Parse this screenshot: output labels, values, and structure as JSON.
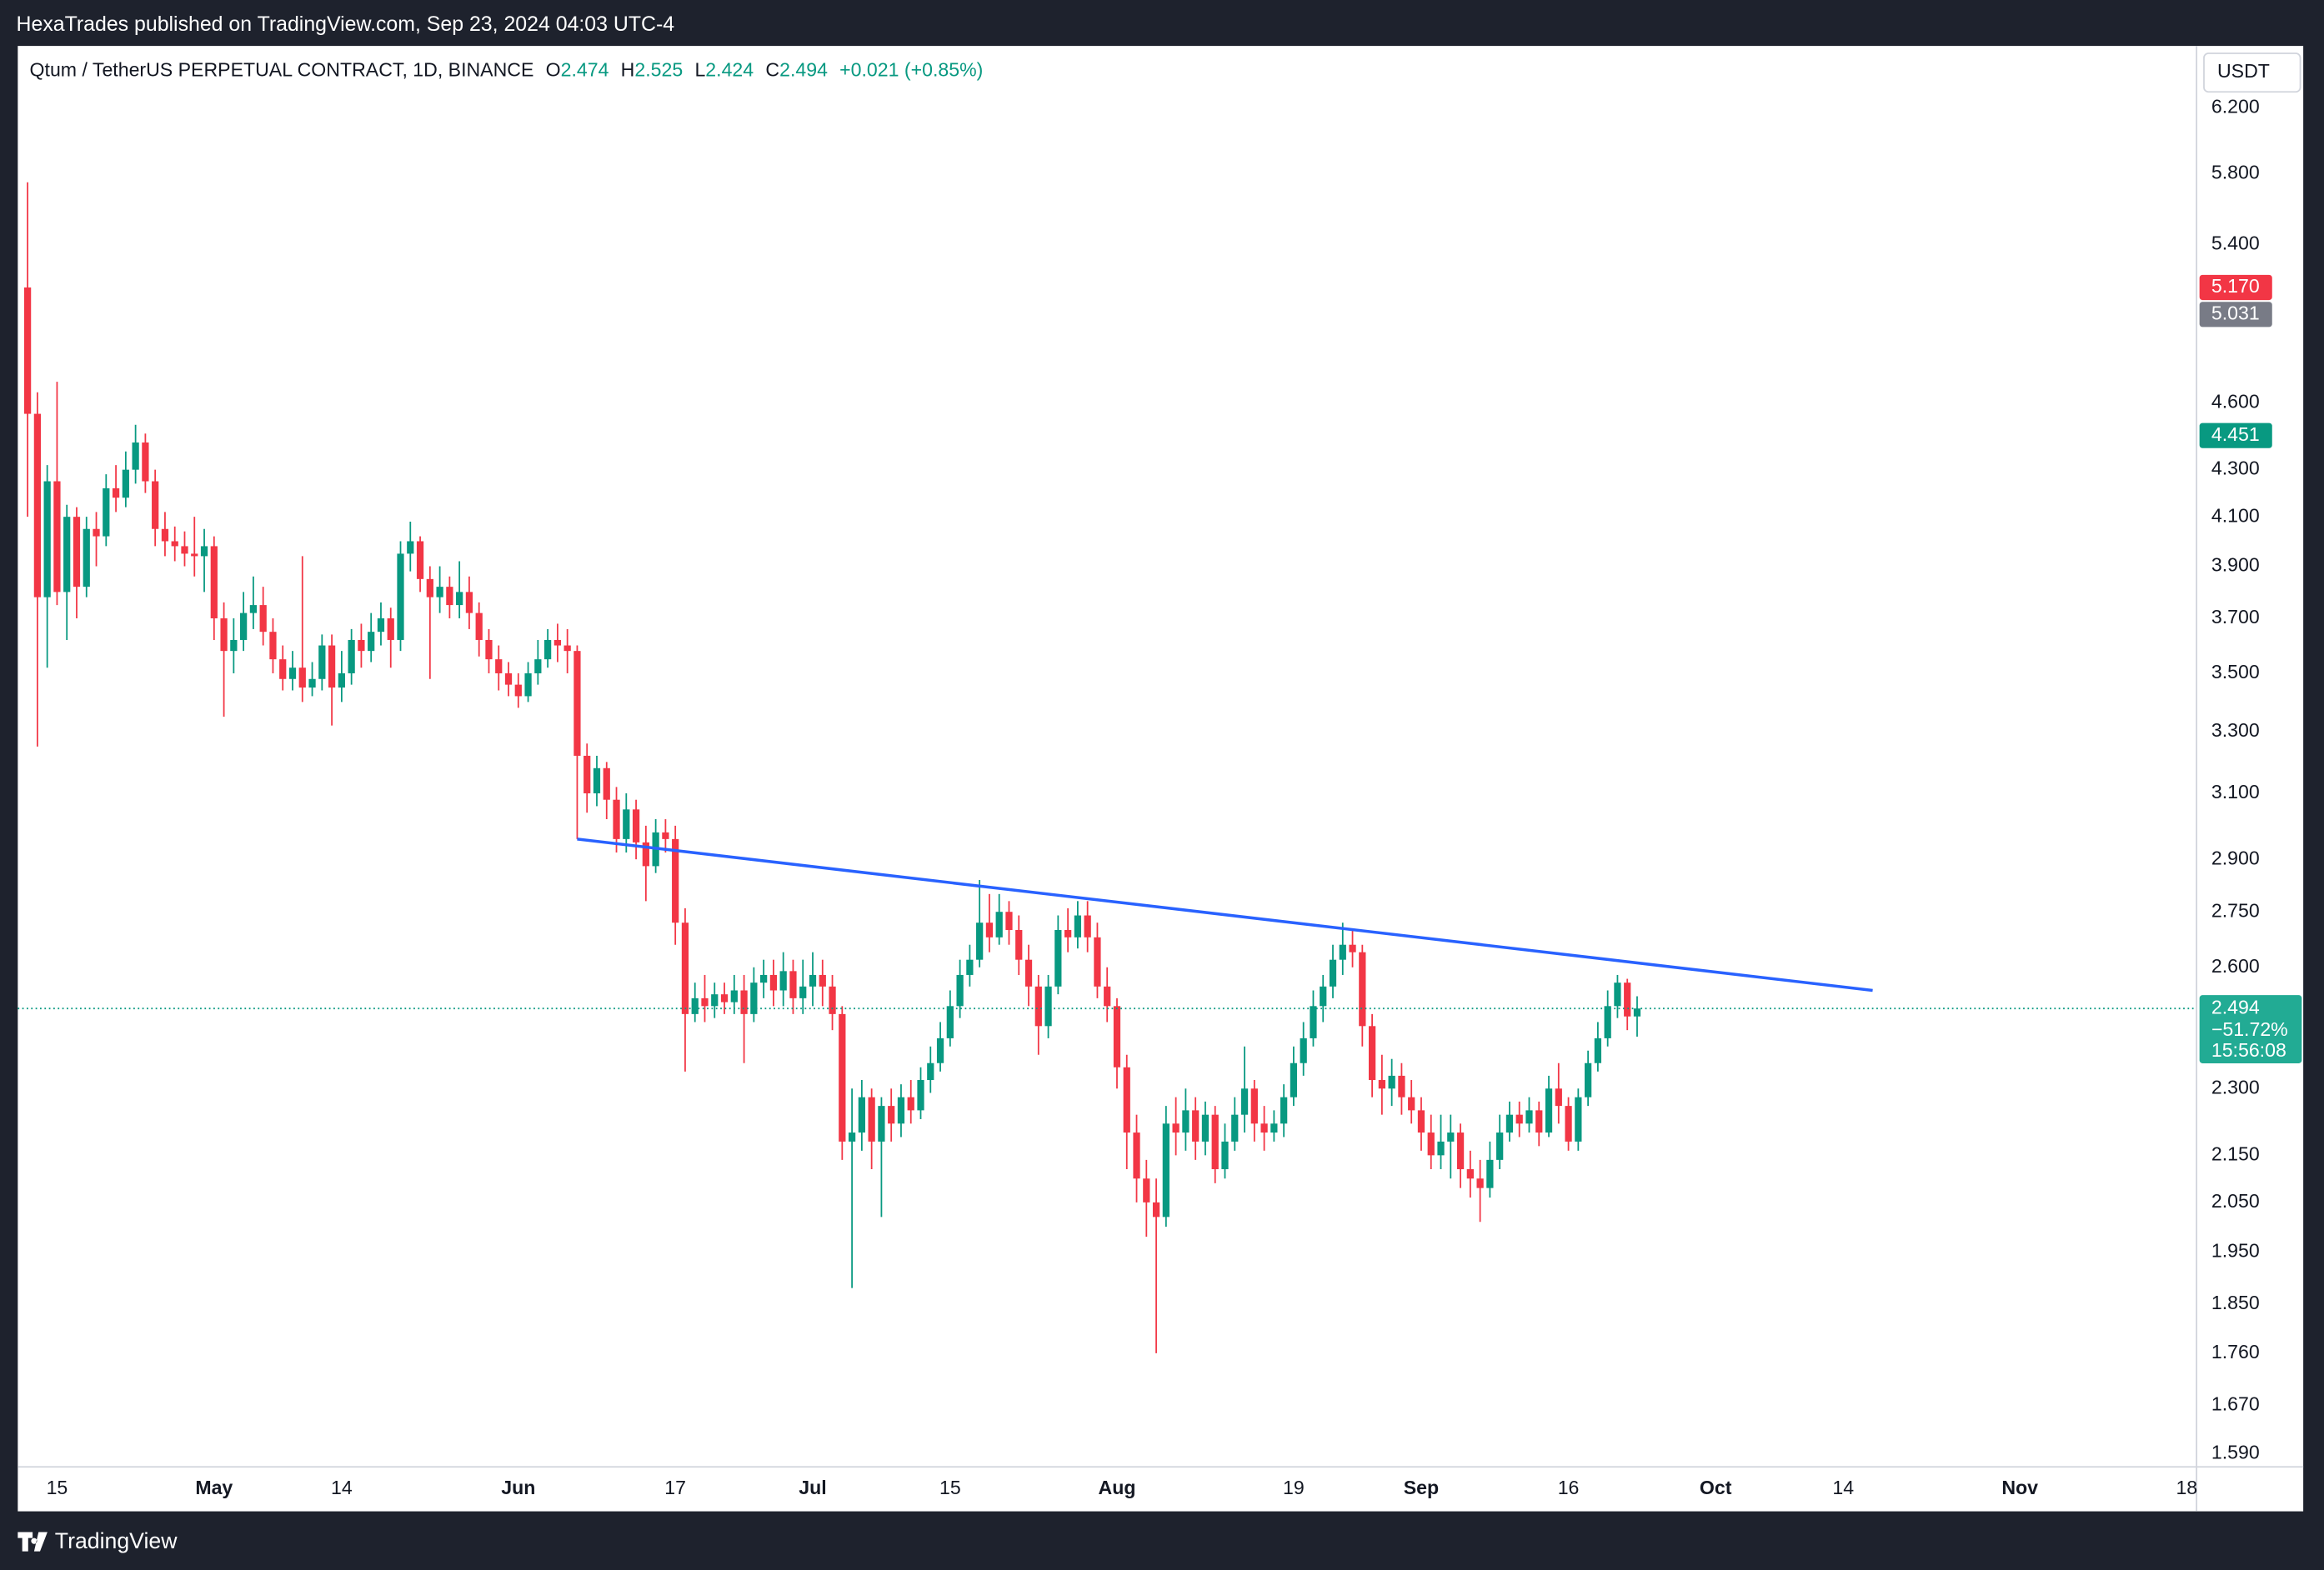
{
  "header": {
    "text": "HexaTrades published on TradingView.com, Sep 23, 2024 04:03 UTC-4"
  },
  "footer": {
    "brand": "TradingView"
  },
  "chart_data": {
    "type": "candlestick",
    "title": "Qtum / TetherUS PERPETUAL CONTRACT, 1D, BINANCE",
    "ohlc_letters": [
      "O",
      "H",
      "L",
      "C"
    ],
    "change_label": "+0.021 (+0.85%)",
    "currency": "USDT",
    "up_color": "#089981",
    "down_color": "#f23645",
    "log_scale": true,
    "grid": false,
    "ylim": [
      1.569,
      6.6
    ],
    "yticks": [
      {
        "value": 6.2,
        "label": "6.200"
      },
      {
        "value": 5.8,
        "label": "5.800"
      },
      {
        "value": 5.4,
        "label": "5.400"
      },
      {
        "value": 4.6,
        "label": "4.600"
      },
      {
        "value": 4.3,
        "label": "4.300"
      },
      {
        "value": 4.1,
        "label": "4.100"
      },
      {
        "value": 3.9,
        "label": "3.900"
      },
      {
        "value": 3.7,
        "label": "3.700"
      },
      {
        "value": 3.5,
        "label": "3.500"
      },
      {
        "value": 3.3,
        "label": "3.300"
      },
      {
        "value": 3.1,
        "label": "3.100"
      },
      {
        "value": 2.9,
        "label": "2.900"
      },
      {
        "value": 2.75,
        "label": "2.750"
      },
      {
        "value": 2.6,
        "label": "2.600"
      },
      {
        "value": 2.3,
        "label": "2.300"
      },
      {
        "value": 2.15,
        "label": "2.150"
      },
      {
        "value": 2.05,
        "label": "2.050"
      },
      {
        "value": 1.95,
        "label": "1.950"
      },
      {
        "value": 1.85,
        "label": "1.850"
      },
      {
        "value": 1.76,
        "label": "1.760"
      },
      {
        "value": 1.67,
        "label": "1.670"
      },
      {
        "value": 1.59,
        "label": "1.590"
      }
    ],
    "xlim": [
      "2024-04-11",
      "2024-11-19"
    ],
    "xticks": [
      {
        "value": "2024-04-15",
        "label": "15"
      },
      {
        "value": "2024-05-01",
        "label": "May"
      },
      {
        "value": "2024-05-14",
        "label": "14"
      },
      {
        "value": "2024-06-01",
        "label": "Jun"
      },
      {
        "value": "2024-06-17",
        "label": "17"
      },
      {
        "value": "2024-07-01",
        "label": "Jul"
      },
      {
        "value": "2024-07-15",
        "label": "15"
      },
      {
        "value": "2024-08-01",
        "label": "Aug"
      },
      {
        "value": "2024-08-19",
        "label": "19"
      },
      {
        "value": "2024-09-01",
        "label": "Sep"
      },
      {
        "value": "2024-09-16",
        "label": "16"
      },
      {
        "value": "2024-10-01",
        "label": "Oct"
      },
      {
        "value": "2024-10-14",
        "label": "14"
      },
      {
        "value": "2024-11-01",
        "label": "Nov"
      },
      {
        "value": "2024-11-18",
        "label": "18"
      }
    ],
    "x": [
      "2024-04-12",
      "2024-04-13",
      "2024-04-14",
      "2024-04-15",
      "2024-04-16",
      "2024-04-17",
      "2024-04-18",
      "2024-04-19",
      "2024-04-20",
      "2024-04-21",
      "2024-04-22",
      "2024-04-23",
      "2024-04-24",
      "2024-04-25",
      "2024-04-26",
      "2024-04-27",
      "2024-04-28",
      "2024-04-29",
      "2024-04-30",
      "2024-05-01",
      "2024-05-02",
      "2024-05-03",
      "2024-05-04",
      "2024-05-05",
      "2024-05-06",
      "2024-05-07",
      "2024-05-08",
      "2024-05-09",
      "2024-05-10",
      "2024-05-11",
      "2024-05-12",
      "2024-05-13",
      "2024-05-14",
      "2024-05-15",
      "2024-05-16",
      "2024-05-17",
      "2024-05-18",
      "2024-05-19",
      "2024-05-20",
      "2024-05-21",
      "2024-05-22",
      "2024-05-23",
      "2024-05-24",
      "2024-05-25",
      "2024-05-26",
      "2024-05-27",
      "2024-05-28",
      "2024-05-29",
      "2024-05-30",
      "2024-05-31",
      "2024-06-01",
      "2024-06-02",
      "2024-06-03",
      "2024-06-04",
      "2024-06-05",
      "2024-06-06",
      "2024-06-07",
      "2024-06-08",
      "2024-06-09",
      "2024-06-10",
      "2024-06-11",
      "2024-06-12",
      "2024-06-13",
      "2024-06-14",
      "2024-06-15",
      "2024-06-16",
      "2024-06-17",
      "2024-06-18",
      "2024-06-19",
      "2024-06-20",
      "2024-06-21",
      "2024-06-22",
      "2024-06-23",
      "2024-06-24",
      "2024-06-25",
      "2024-06-26",
      "2024-06-27",
      "2024-06-28",
      "2024-06-29",
      "2024-06-30",
      "2024-07-01",
      "2024-07-02",
      "2024-07-03",
      "2024-07-04",
      "2024-07-05",
      "2024-07-06",
      "2024-07-07",
      "2024-07-08",
      "2024-07-09",
      "2024-07-10",
      "2024-07-11",
      "2024-07-12",
      "2024-07-13",
      "2024-07-14",
      "2024-07-15",
      "2024-07-16",
      "2024-07-17",
      "2024-07-18",
      "2024-07-19",
      "2024-07-20",
      "2024-07-21",
      "2024-07-22",
      "2024-07-23",
      "2024-07-24",
      "2024-07-25",
      "2024-07-26",
      "2024-07-27",
      "2024-07-28",
      "2024-07-29",
      "2024-07-30",
      "2024-07-31",
      "2024-08-01",
      "2024-08-02",
      "2024-08-03",
      "2024-08-04",
      "2024-08-05",
      "2024-08-06",
      "2024-08-07",
      "2024-08-08",
      "2024-08-09",
      "2024-08-10",
      "2024-08-11",
      "2024-08-12",
      "2024-08-13",
      "2024-08-14",
      "2024-08-15",
      "2024-08-16",
      "2024-08-17",
      "2024-08-18",
      "2024-08-19",
      "2024-08-20",
      "2024-08-21",
      "2024-08-22",
      "2024-08-23",
      "2024-08-24",
      "2024-08-25",
      "2024-08-26",
      "2024-08-27",
      "2024-08-28",
      "2024-08-29",
      "2024-08-30",
      "2024-08-31",
      "2024-09-01",
      "2024-09-02",
      "2024-09-03",
      "2024-09-04",
      "2024-09-05",
      "2024-09-06",
      "2024-09-07",
      "2024-09-08",
      "2024-09-09",
      "2024-09-10",
      "2024-09-11",
      "2024-09-12",
      "2024-09-13",
      "2024-09-14",
      "2024-09-15",
      "2024-09-16",
      "2024-09-17",
      "2024-09-18",
      "2024-09-19",
      "2024-09-20",
      "2024-09-21",
      "2024-09-22",
      "2024-09-23"
    ],
    "open": [
      5.17,
      4.55,
      3.78,
      4.25,
      3.8,
      4.1,
      3.82,
      4.05,
      4.02,
      4.22,
      4.18,
      4.3,
      4.42,
      4.25,
      4.05,
      4.0,
      3.98,
      3.95,
      3.94,
      3.98,
      3.7,
      3.58,
      3.62,
      3.72,
      3.75,
      3.65,
      3.55,
      3.48,
      3.52,
      3.45,
      3.48,
      3.6,
      3.45,
      3.5,
      3.62,
      3.58,
      3.65,
      3.7,
      3.62,
      3.95,
      4.0,
      3.85,
      3.78,
      3.82,
      3.75,
      3.8,
      3.72,
      3.62,
      3.55,
      3.5,
      3.46,
      3.42,
      3.5,
      3.55,
      3.62,
      3.6,
      3.58,
      3.22,
      3.1,
      3.18,
      3.08,
      2.96,
      3.05,
      2.95,
      2.88,
      2.98,
      2.96,
      2.72,
      2.48,
      2.52,
      2.5,
      2.53,
      2.51,
      2.54,
      2.48,
      2.56,
      2.58,
      2.54,
      2.59,
      2.52,
      2.55,
      2.58,
      2.55,
      2.48,
      2.18,
      2.2,
      2.28,
      2.18,
      2.26,
      2.22,
      2.28,
      2.25,
      2.32,
      2.36,
      2.42,
      2.5,
      2.58,
      2.62,
      2.72,
      2.68,
      2.75,
      2.7,
      2.62,
      2.55,
      2.45,
      2.55,
      2.7,
      2.68,
      2.74,
      2.68,
      2.55,
      2.5,
      2.35,
      2.2,
      2.1,
      2.05,
      2.02,
      2.22,
      2.2,
      2.25,
      2.18,
      2.24,
      2.12,
      2.18,
      2.24,
      2.3,
      2.22,
      2.2,
      2.22,
      2.28,
      2.36,
      2.42,
      2.5,
      2.55,
      2.62,
      2.66,
      2.64,
      2.45,
      2.32,
      2.3,
      2.33,
      2.28,
      2.25,
      2.2,
      2.15,
      2.18,
      2.2,
      2.12,
      2.1,
      2.08,
      2.14,
      2.2,
      2.24,
      2.22,
      2.25,
      2.2,
      2.3,
      2.26,
      2.18,
      2.28,
      2.36,
      2.42,
      2.5,
      2.56,
      2.474
    ],
    "high": [
      5.75,
      4.65,
      4.32,
      4.7,
      4.15,
      4.14,
      4.1,
      4.12,
      4.28,
      4.32,
      4.38,
      4.5,
      4.46,
      4.3,
      4.12,
      4.06,
      4.04,
      4.1,
      4.05,
      4.02,
      3.76,
      3.7,
      3.8,
      3.86,
      3.82,
      3.7,
      3.6,
      3.58,
      3.94,
      3.54,
      3.64,
      3.64,
      3.58,
      3.66,
      3.68,
      3.72,
      3.76,
      3.74,
      4.0,
      4.08,
      4.02,
      3.9,
      3.9,
      3.86,
      3.92,
      3.86,
      3.76,
      3.66,
      3.6,
      3.54,
      3.5,
      3.54,
      3.62,
      3.66,
      3.68,
      3.66,
      3.6,
      3.26,
      3.22,
      3.2,
      3.12,
      3.1,
      3.08,
      3.0,
      3.02,
      3.02,
      3.0,
      2.76,
      2.56,
      2.58,
      2.56,
      2.56,
      2.58,
      2.58,
      2.6,
      2.62,
      2.62,
      2.64,
      2.62,
      2.62,
      2.64,
      2.62,
      2.58,
      2.5,
      2.3,
      2.32,
      2.3,
      2.28,
      2.3,
      2.31,
      2.32,
      2.35,
      2.4,
      2.46,
      2.54,
      2.62,
      2.66,
      2.84,
      2.8,
      2.8,
      2.78,
      2.74,
      2.66,
      2.58,
      2.58,
      2.74,
      2.76,
      2.78,
      2.78,
      2.72,
      2.6,
      2.52,
      2.38,
      2.24,
      2.14,
      2.1,
      2.26,
      2.28,
      2.3,
      2.28,
      2.27,
      2.26,
      2.22,
      2.28,
      2.4,
      2.32,
      2.26,
      2.25,
      2.31,
      2.4,
      2.46,
      2.54,
      2.58,
      2.66,
      2.72,
      2.7,
      2.66,
      2.48,
      2.38,
      2.37,
      2.36,
      2.32,
      2.28,
      2.24,
      2.24,
      2.24,
      2.22,
      2.16,
      2.14,
      2.18,
      2.24,
      2.27,
      2.27,
      2.28,
      2.27,
      2.33,
      2.36,
      2.28,
      2.3,
      2.39,
      2.46,
      2.54,
      2.58,
      2.57,
      2.525
    ],
    "low": [
      4.1,
      3.25,
      3.52,
      3.75,
      3.62,
      3.7,
      3.78,
      3.9,
      3.98,
      4.12,
      4.14,
      4.24,
      4.2,
      3.98,
      3.94,
      3.92,
      3.9,
      3.86,
      3.8,
      3.62,
      3.35,
      3.5,
      3.58,
      3.66,
      3.6,
      3.5,
      3.44,
      3.44,
      3.4,
      3.42,
      3.44,
      3.32,
      3.4,
      3.46,
      3.52,
      3.54,
      3.6,
      3.52,
      3.58,
      3.88,
      3.8,
      3.48,
      3.72,
      3.7,
      3.7,
      3.66,
      3.56,
      3.5,
      3.44,
      3.42,
      3.38,
      3.4,
      3.46,
      3.52,
      3.54,
      3.5,
      2.96,
      3.04,
      3.06,
      3.02,
      2.92,
      2.92,
      2.9,
      2.78,
      2.86,
      2.92,
      2.66,
      2.34,
      2.46,
      2.46,
      2.47,
      2.48,
      2.48,
      2.36,
      2.46,
      2.52,
      2.5,
      2.5,
      2.48,
      2.48,
      2.5,
      2.5,
      2.44,
      2.14,
      1.88,
      2.16,
      2.12,
      2.02,
      2.18,
      2.19,
      2.22,
      2.23,
      2.29,
      2.34,
      2.4,
      2.47,
      2.55,
      2.6,
      2.64,
      2.66,
      2.66,
      2.58,
      2.5,
      2.38,
      2.42,
      2.53,
      2.64,
      2.65,
      2.64,
      2.52,
      2.46,
      2.3,
      2.12,
      2.05,
      1.98,
      1.76,
      2.0,
      2.15,
      2.16,
      2.14,
      2.15,
      2.09,
      2.1,
      2.16,
      2.2,
      2.18,
      2.16,
      2.18,
      2.19,
      2.26,
      2.33,
      2.4,
      2.46,
      2.52,
      2.58,
      2.6,
      2.4,
      2.28,
      2.24,
      2.26,
      2.24,
      2.22,
      2.16,
      2.12,
      2.12,
      2.1,
      2.08,
      2.06,
      2.01,
      2.06,
      2.12,
      2.18,
      2.19,
      2.2,
      2.17,
      2.19,
      2.22,
      2.16,
      2.16,
      2.26,
      2.34,
      2.4,
      2.47,
      2.44,
      2.424
    ],
    "close": [
      4.55,
      3.78,
      4.25,
      3.8,
      4.1,
      3.82,
      4.05,
      4.02,
      4.22,
      4.18,
      4.3,
      4.42,
      4.25,
      4.05,
      4.0,
      3.98,
      3.95,
      3.94,
      3.98,
      3.7,
      3.58,
      3.62,
      3.72,
      3.75,
      3.65,
      3.55,
      3.48,
      3.52,
      3.45,
      3.48,
      3.6,
      3.45,
      3.5,
      3.62,
      3.58,
      3.65,
      3.7,
      3.62,
      3.95,
      4.0,
      3.85,
      3.78,
      3.82,
      3.75,
      3.8,
      3.72,
      3.62,
      3.55,
      3.5,
      3.46,
      3.42,
      3.5,
      3.55,
      3.62,
      3.6,
      3.58,
      3.22,
      3.1,
      3.18,
      3.08,
      2.96,
      3.05,
      2.95,
      2.88,
      2.98,
      2.96,
      2.72,
      2.48,
      2.52,
      2.5,
      2.53,
      2.51,
      2.54,
      2.48,
      2.56,
      2.58,
      2.54,
      2.59,
      2.52,
      2.55,
      2.58,
      2.55,
      2.48,
      2.18,
      2.2,
      2.28,
      2.18,
      2.26,
      2.22,
      2.28,
      2.25,
      2.32,
      2.36,
      2.42,
      2.5,
      2.58,
      2.62,
      2.72,
      2.68,
      2.75,
      2.7,
      2.62,
      2.55,
      2.45,
      2.55,
      2.7,
      2.68,
      2.74,
      2.68,
      2.55,
      2.5,
      2.35,
      2.2,
      2.1,
      2.05,
      2.02,
      2.22,
      2.2,
      2.25,
      2.18,
      2.24,
      2.12,
      2.18,
      2.24,
      2.3,
      2.22,
      2.2,
      2.22,
      2.28,
      2.36,
      2.42,
      2.5,
      2.55,
      2.62,
      2.66,
      2.64,
      2.45,
      2.32,
      2.3,
      2.33,
      2.28,
      2.25,
      2.2,
      2.15,
      2.18,
      2.2,
      2.12,
      2.1,
      2.08,
      2.14,
      2.2,
      2.24,
      2.22,
      2.25,
      2.2,
      2.3,
      2.26,
      2.18,
      2.28,
      2.36,
      2.42,
      2.5,
      2.56,
      2.474,
      2.494
    ],
    "price_markers": [
      {
        "value": 5.17,
        "label": "5.170",
        "color": "#f23645"
      },
      {
        "value": 5.031,
        "label": "5.031",
        "color": "#787b86"
      },
      {
        "value": 4.451,
        "label": "4.451",
        "color": "#089981"
      }
    ],
    "last_price": {
      "change": "−51.72%",
      "countdown": "15:56:08",
      "color": "#22ab94"
    },
    "trendline": {
      "x": [
        "2024-06-07",
        "2024-10-17"
      ],
      "values": [
        2.96,
        2.54
      ],
      "color": "#2962ff"
    }
  }
}
